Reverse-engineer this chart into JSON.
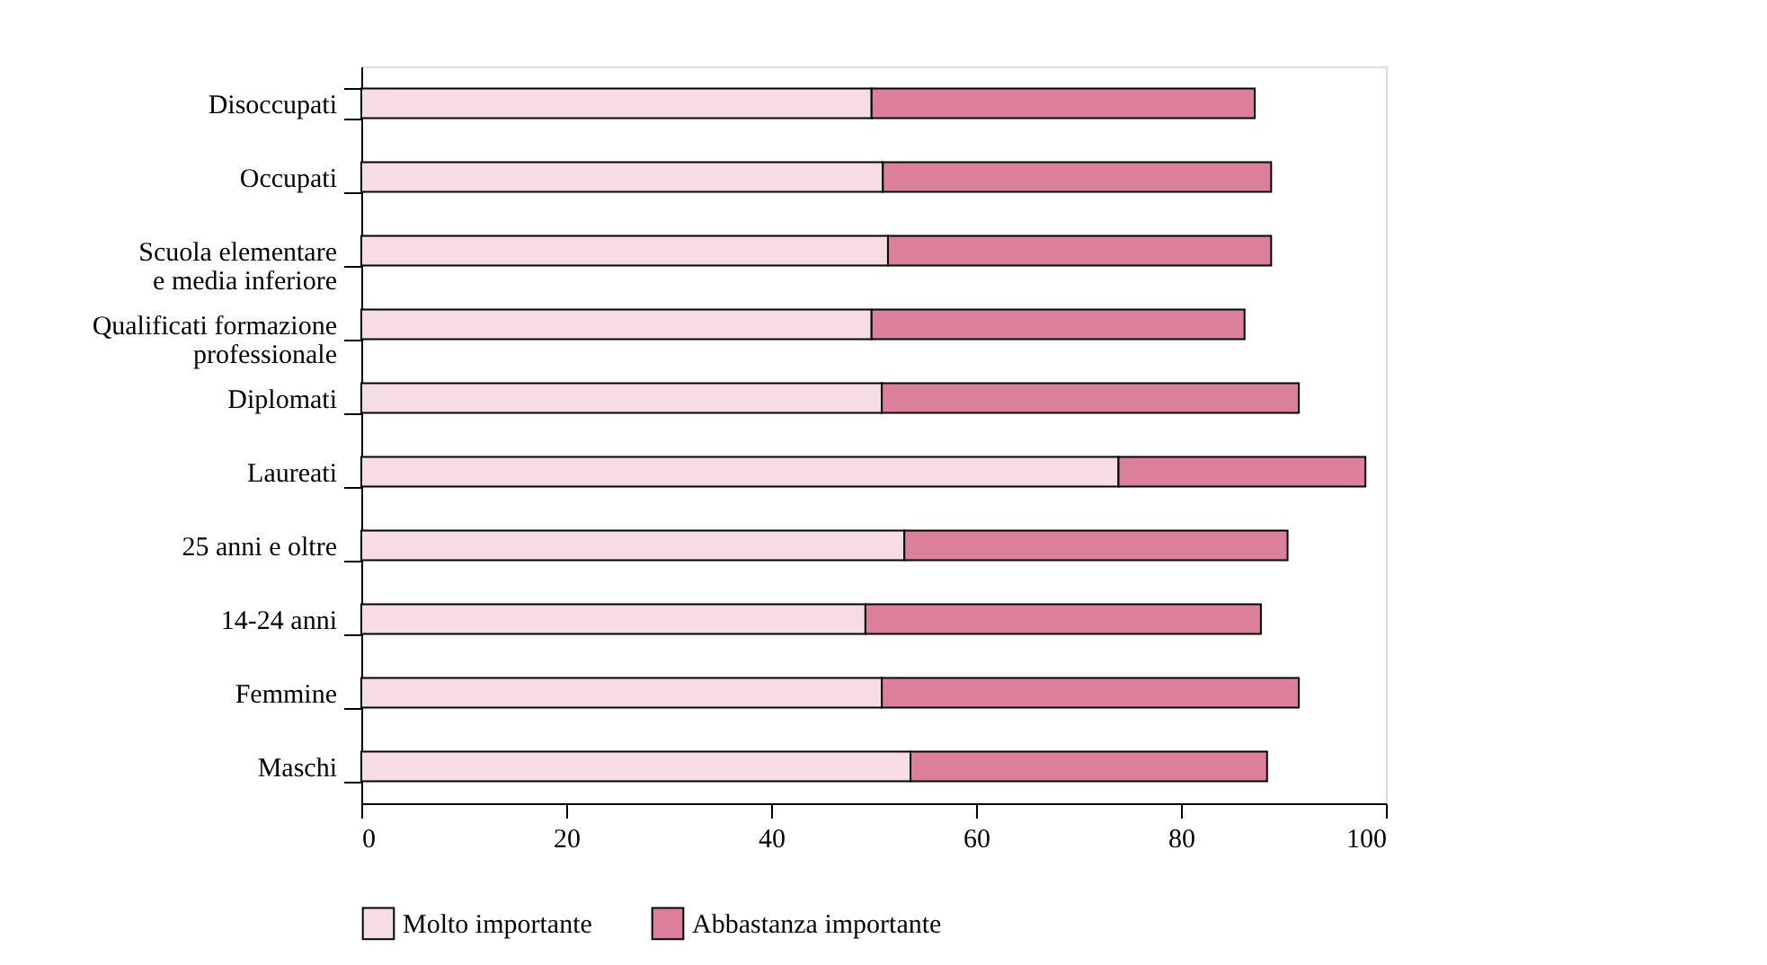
{
  "chart_data": {
    "type": "bar",
    "orientation": "horizontal",
    "stacked": true,
    "categories": [
      "Disoccupati",
      "Occupati",
      "Scuola elementare\ne media inferiore",
      "Qualificati formazione\nprofessionale",
      "Diplomati",
      "Laureati",
      "25 anni e oltre",
      "14-24 anni",
      "Femmine",
      "Maschi"
    ],
    "series": [
      {
        "name": "Molto importante",
        "color": "#f5dde3",
        "values": [
          49.8,
          50.9,
          51.4,
          49.8,
          50.8,
          73.9,
          53.0,
          49.2,
          50.8,
          53.6
        ]
      },
      {
        "name": "Abbastanza importante",
        "color": "#dc7f9b",
        "values": [
          37.4,
          37.9,
          37.4,
          36.4,
          40.7,
          24.1,
          37.4,
          38.6,
          40.7,
          34.8
        ]
      }
    ],
    "xlim": [
      0,
      100
    ],
    "xticks": [
      0,
      20,
      40,
      60,
      80,
      100
    ],
    "grid": false,
    "legend": "bottom"
  }
}
